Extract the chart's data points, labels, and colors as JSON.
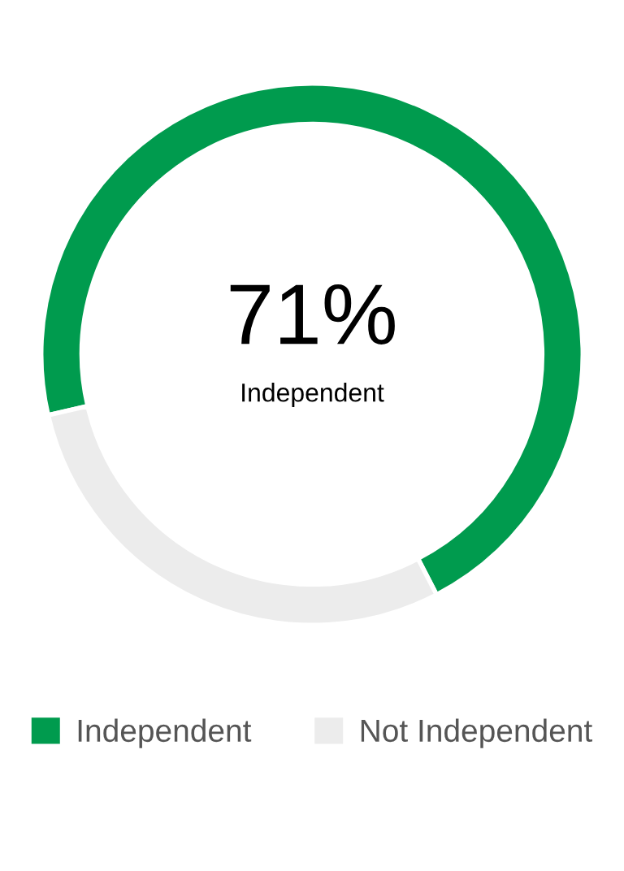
{
  "chart_data": {
    "type": "donut",
    "categories": [
      "Independent",
      "Not Independent"
    ],
    "values": [
      71,
      29
    ],
    "colors": [
      "#009b4e",
      "#ececec"
    ],
    "annotations": [
      "71%",
      "Independent"
    ],
    "legend": "bottom"
  }
}
